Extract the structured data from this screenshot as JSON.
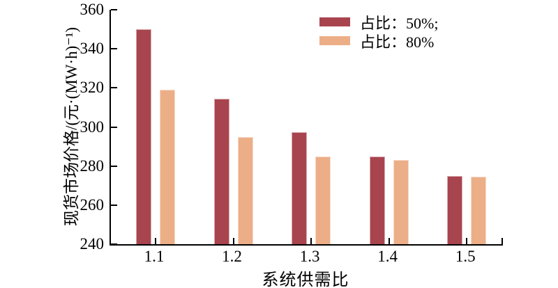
{
  "chart_data": {
    "type": "bar",
    "categories": [
      "1.1",
      "1.2",
      "1.3",
      "1.4",
      "1.5"
    ],
    "series": [
      {
        "name": "占比：50%;",
        "color": "#A8444E",
        "values": [
          350,
          314.5,
          297.5,
          285,
          275
        ]
      },
      {
        "name": "占比：80%",
        "color": "#ECAE87",
        "values": [
          319,
          295,
          285,
          283,
          274.5
        ]
      }
    ],
    "title": "",
    "xlabel": "系统供需比",
    "ylabel": "现货市场价格/(元·(MW·h)⁻¹)",
    "ylim": [
      240,
      360
    ],
    "yticks": [
      240,
      260,
      280,
      300,
      320,
      340,
      360
    ],
    "grid": false,
    "legend_position": "top-right",
    "axis_color": "#000000",
    "background_color": "#ffffff"
  }
}
